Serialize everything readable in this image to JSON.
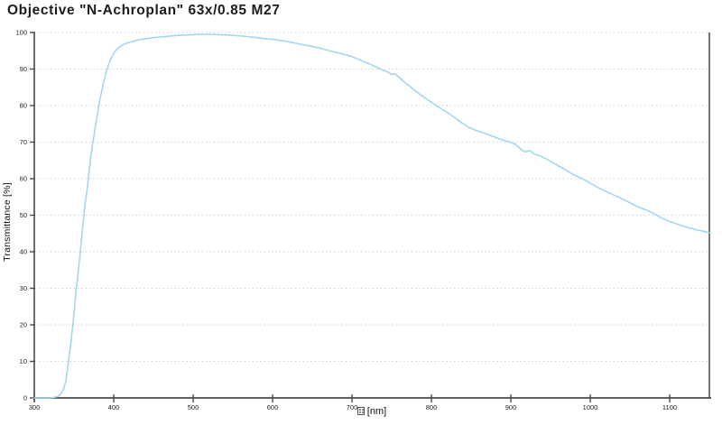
{
  "header": {
    "title": "Objective \"N-Achroplan\" 63x/0.85 M27"
  },
  "chart_data": {
    "type": "line",
    "title": "Objective \"N-Achroplan\" 63x/0.85 M27",
    "xlabel": "[nm]",
    "xlabel_has_missing_glyph_box": true,
    "ylabel": "Transmittance [%]",
    "xlim": [
      300,
      1150
    ],
    "ylim": [
      0,
      100
    ],
    "x_ticks": [
      300,
      400,
      500,
      600,
      700,
      800,
      900,
      1000,
      1100
    ],
    "y_ticks": [
      0,
      10,
      20,
      30,
      40,
      50,
      60,
      70,
      80,
      90,
      100
    ],
    "grid": "horizontal-dashed",
    "legend": "none",
    "colors": {
      "line": "#a4d6ef",
      "axis": "#4a4a4a",
      "border": "#3a3a3a",
      "grid": "#cfcfcf",
      "text": "#222222"
    },
    "series": [
      {
        "name": "Transmittance",
        "color": "#a4d6ef",
        "points": [
          [
            300,
            0
          ],
          [
            310,
            0
          ],
          [
            320,
            0
          ],
          [
            326,
            0.2
          ],
          [
            330,
            0.5
          ],
          [
            334,
            1.2
          ],
          [
            337,
            2.5
          ],
          [
            340,
            5
          ],
          [
            343,
            10
          ],
          [
            346,
            15
          ],
          [
            349,
            21
          ],
          [
            352,
            28
          ],
          [
            355,
            34
          ],
          [
            358,
            40
          ],
          [
            361,
            47
          ],
          [
            364,
            53
          ],
          [
            367,
            58
          ],
          [
            370,
            64
          ],
          [
            373,
            69
          ],
          [
            376,
            73
          ],
          [
            379,
            77
          ],
          [
            382,
            81
          ],
          [
            385,
            84
          ],
          [
            388,
            87
          ],
          [
            391,
            89.5
          ],
          [
            394,
            91.5
          ],
          [
            398,
            93.5
          ],
          [
            402,
            95
          ],
          [
            407,
            96
          ],
          [
            412,
            96.7
          ],
          [
            418,
            97.2
          ],
          [
            425,
            97.6
          ],
          [
            432,
            98
          ],
          [
            440,
            98.3
          ],
          [
            450,
            98.6
          ],
          [
            460,
            98.8
          ],
          [
            470,
            99
          ],
          [
            480,
            99.2
          ],
          [
            490,
            99.3
          ],
          [
            500,
            99.4
          ],
          [
            510,
            99.5
          ],
          [
            520,
            99.5
          ],
          [
            532,
            99.4
          ],
          [
            544,
            99.3
          ],
          [
            556,
            99.1
          ],
          [
            568,
            98.9
          ],
          [
            580,
            98.6
          ],
          [
            592,
            98.3
          ],
          [
            604,
            98
          ],
          [
            616,
            97.6
          ],
          [
            628,
            97.1
          ],
          [
            640,
            96.6
          ],
          [
            652,
            96.1
          ],
          [
            665,
            95.4
          ],
          [
            677,
            94.7
          ],
          [
            689,
            94.1
          ],
          [
            700,
            93.4
          ],
          [
            711,
            92.4
          ],
          [
            722,
            91.4
          ],
          [
            731,
            90.5
          ],
          [
            740,
            89.6
          ],
          [
            746,
            89.1
          ],
          [
            750,
            88.5
          ],
          [
            754,
            88.7
          ],
          [
            758,
            88
          ],
          [
            764,
            86.8
          ],
          [
            772,
            85.4
          ],
          [
            780,
            84
          ],
          [
            788,
            82.7
          ],
          [
            796,
            81.5
          ],
          [
            806,
            80
          ],
          [
            815,
            78.8
          ],
          [
            825,
            77.4
          ],
          [
            836,
            75.6
          ],
          [
            846,
            74.2
          ],
          [
            856,
            73.2
          ],
          [
            866,
            72.5
          ],
          [
            876,
            71.7
          ],
          [
            888,
            70.7
          ],
          [
            898,
            70.1
          ],
          [
            906,
            69.4
          ],
          [
            912,
            68.2
          ],
          [
            918,
            67.3
          ],
          [
            924,
            67.7
          ],
          [
            930,
            66.7
          ],
          [
            938,
            66.2
          ],
          [
            946,
            65.2
          ],
          [
            957,
            63.9
          ],
          [
            968,
            62.5
          ],
          [
            980,
            61
          ],
          [
            990,
            60
          ],
          [
            1000,
            58.8
          ],
          [
            1012,
            57.3
          ],
          [
            1024,
            56.1
          ],
          [
            1036,
            54.9
          ],
          [
            1048,
            53.6
          ],
          [
            1060,
            52.3
          ],
          [
            1072,
            51.3
          ],
          [
            1082,
            50.2
          ],
          [
            1090,
            49.2
          ],
          [
            1100,
            48.3
          ],
          [
            1110,
            47.5
          ],
          [
            1122,
            46.7
          ],
          [
            1134,
            46
          ],
          [
            1144,
            45.5
          ],
          [
            1150,
            45.2
          ]
        ]
      }
    ]
  }
}
